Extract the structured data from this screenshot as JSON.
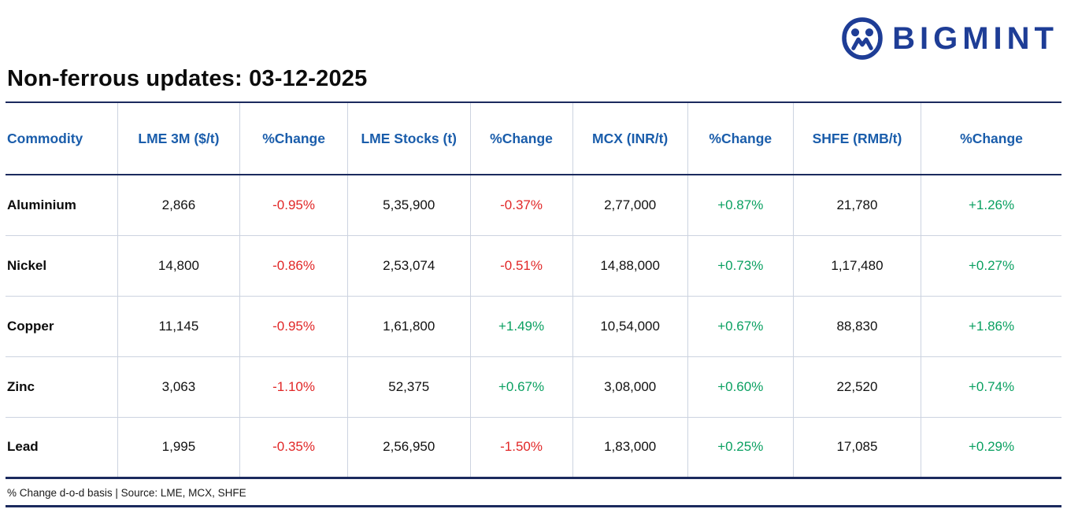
{
  "brand": {
    "name": "BIGMINT"
  },
  "title": "Non-ferrous updates: 03-12-2025",
  "footer": "% Change d-o-d basis | Source: LME, MCX, SHFE",
  "colors": {
    "brand": "#1e3d96",
    "header_text": "#1a5dab",
    "positive": "#0aa061",
    "negative": "#e12727",
    "line_dark": "#1b2a5e",
    "grid_line": "#ccd3e0"
  },
  "chart_data": {
    "type": "table",
    "title": "Non-ferrous updates: 03-12-2025",
    "columns": [
      "Commodity",
      "LME 3M ($/t)",
      "%Change",
      "LME Stocks (t)",
      "%Change",
      "MCX (INR/t)",
      "%Change",
      "SHFE (RMB/t)",
      "%Change"
    ],
    "rows": [
      [
        "Aluminium",
        "2,866",
        "-0.95%",
        "5,35,900",
        "-0.37%",
        "2,77,000",
        "+0.87%",
        "21,780",
        "+1.26%"
      ],
      [
        "Nickel",
        "14,800",
        "-0.86%",
        "2,53,074",
        "-0.51%",
        "14,88,000",
        "+0.73%",
        "1,17,480",
        "+0.27%"
      ],
      [
        "Copper",
        "11,145",
        "-0.95%",
        "1,61,800",
        "+1.49%",
        "10,54,000",
        "+0.67%",
        "88,830",
        "+1.86%"
      ],
      [
        "Zinc",
        "3,063",
        "-1.10%",
        "52,375",
        "+0.67%",
        "3,08,000",
        "+0.60%",
        "22,520",
        "+0.74%"
      ],
      [
        "Lead",
        "1,995",
        "-0.35%",
        "2,56,950",
        "-1.50%",
        "1,83,000",
        "+0.25%",
        "17,085",
        "+0.29%"
      ]
    ],
    "legend": {
      "negative_color_meaning": "day-on-day decline",
      "positive_color_meaning": "day-on-day gain"
    },
    "note": "% Change d-o-d basis | Source: LME, MCX, SHFE"
  }
}
